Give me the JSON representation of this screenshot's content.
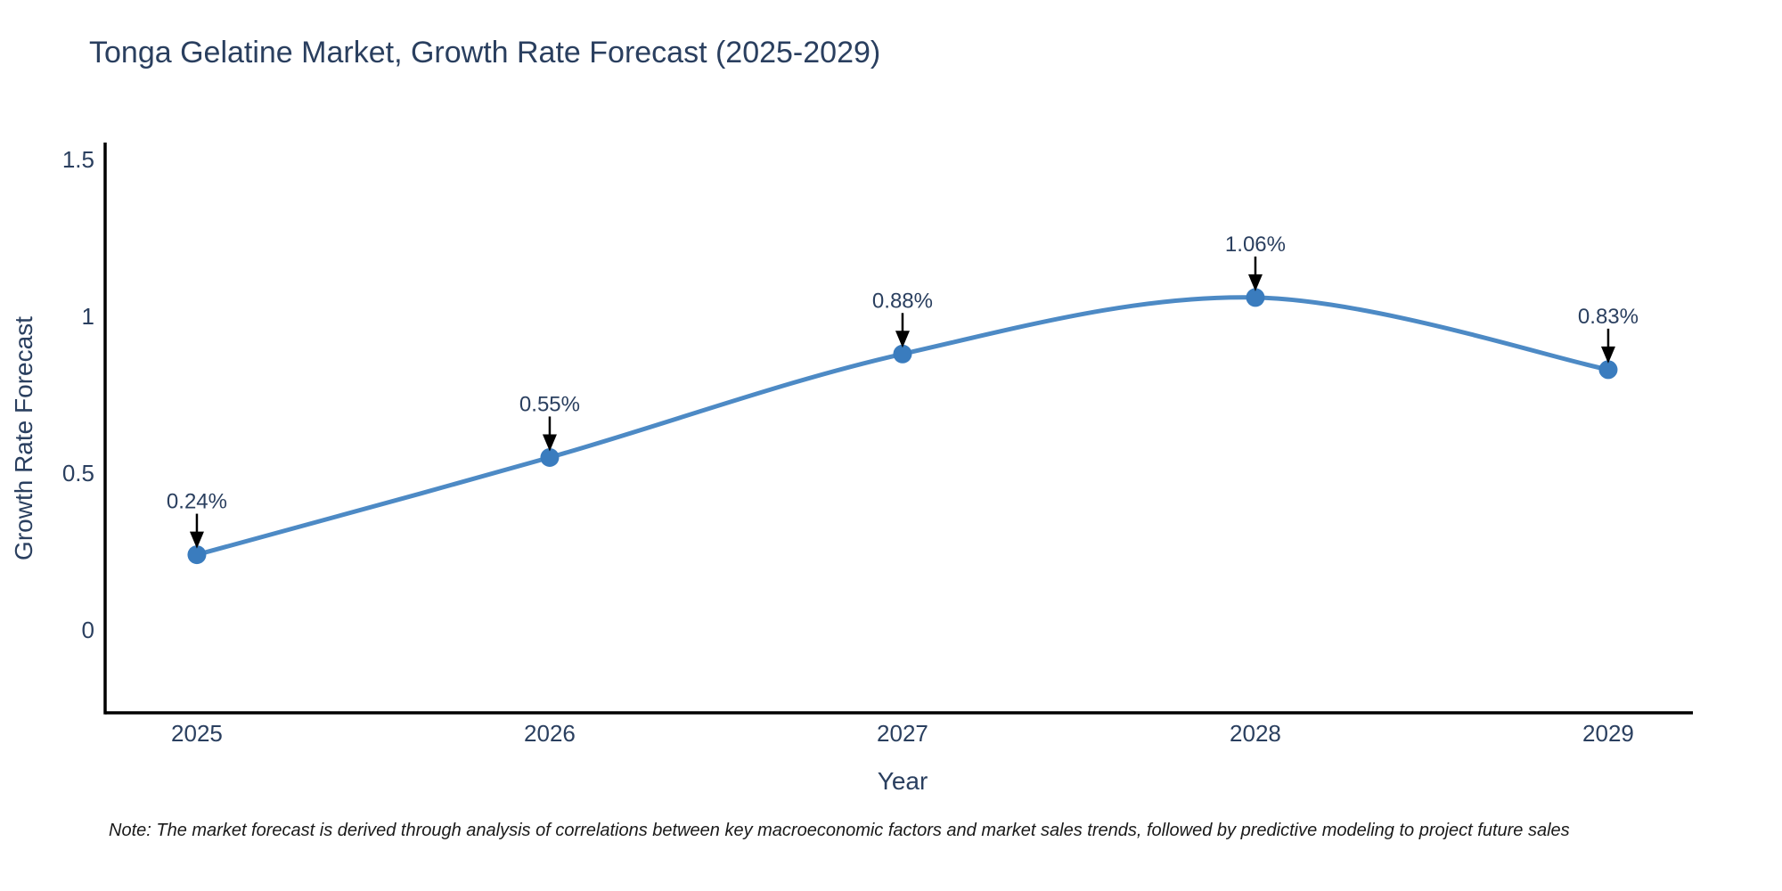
{
  "header": {
    "title": "Tonga Gelatine Market, Growth Rate Forecast (2025-2029)"
  },
  "footer": {
    "note": "Note: The market forecast is derived through analysis of correlations between key macroeconomic factors and market sales trends, followed by predictive modeling to project future sales"
  },
  "chart_data": {
    "type": "line",
    "title": "Tonga Gelatine Market, Growth Rate Forecast (2025-2029)",
    "xlabel": "Year",
    "ylabel": "Growth Rate Forecast",
    "x": [
      2025,
      2026,
      2027,
      2028,
      2029
    ],
    "values": [
      0.24,
      0.55,
      0.88,
      1.06,
      0.83
    ],
    "point_labels": [
      "0.24%",
      "0.55%",
      "0.88%",
      "1.06%",
      "0.83%"
    ],
    "xtick_labels": [
      "2025",
      "2026",
      "2027",
      "2028",
      "2029"
    ],
    "yticks": [
      0,
      0.5,
      1,
      1.5
    ],
    "ytick_labels": [
      "0",
      "0.5",
      "1",
      "1.5"
    ],
    "xlim": [
      2024.74,
      2029.24
    ],
    "ylim": [
      -0.264,
      1.554
    ],
    "grid": false,
    "legend": "none",
    "curve": "spline",
    "annotation_style": "value-label-with-down-arrow",
    "colors": {
      "line": "#4d8ac5",
      "marker": "#3a7cbe",
      "arrow": "#000000",
      "axis": "#000000",
      "text": "#2a3f5f",
      "note_text": "#1a1a1a"
    }
  }
}
